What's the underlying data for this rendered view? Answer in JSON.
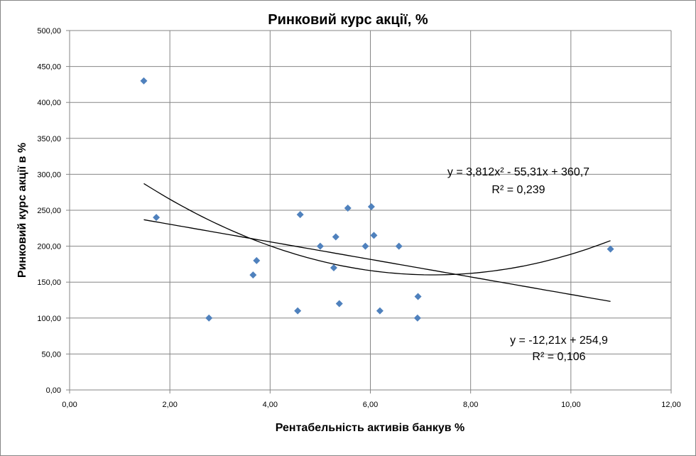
{
  "chart_data": {
    "type": "scatter",
    "title": "Ринковий курс акції, %",
    "xlabel": "Рентабельність  активів банкув %",
    "ylabel": "Ринковий курс акції в %",
    "xlim": [
      0,
      12
    ],
    "ylim": [
      0,
      500
    ],
    "grid": true,
    "legend": "none",
    "x_ticks": [
      "0,00",
      "2,00",
      "4,00",
      "6,00",
      "8,00",
      "10,00",
      "12,00"
    ],
    "y_ticks": [
      "0,00",
      "50,00",
      "100,00",
      "150,00",
      "200,00",
      "250,00",
      "300,00",
      "350,00",
      "400,00",
      "450,00",
      "500,00"
    ],
    "marker_color": "#4F81BD",
    "points": [
      {
        "x": 1.48,
        "y": 430
      },
      {
        "x": 1.73,
        "y": 240
      },
      {
        "x": 2.78,
        "y": 100
      },
      {
        "x": 3.66,
        "y": 160
      },
      {
        "x": 3.73,
        "y": 180
      },
      {
        "x": 4.55,
        "y": 110
      },
      {
        "x": 4.6,
        "y": 244
      },
      {
        "x": 5.0,
        "y": 200
      },
      {
        "x": 5.27,
        "y": 170
      },
      {
        "x": 5.31,
        "y": 213
      },
      {
        "x": 5.38,
        "y": 120
      },
      {
        "x": 5.55,
        "y": 253
      },
      {
        "x": 5.9,
        "y": 200
      },
      {
        "x": 6.02,
        "y": 255
      },
      {
        "x": 6.07,
        "y": 215
      },
      {
        "x": 6.19,
        "y": 110
      },
      {
        "x": 6.57,
        "y": 200
      },
      {
        "x": 6.95,
        "y": 130
      },
      {
        "x": 6.94,
        "y": 100
      },
      {
        "x": 10.79,
        "y": 196
      }
    ],
    "trendlines": [
      {
        "kind": "polynomial",
        "coef": [
          3.812,
          -55.31,
          360.7
        ],
        "equation": "y = 3,812x² - 55,31x + 360,7",
        "r2": "R² = 0,239",
        "x_range": [
          1.48,
          10.79
        ]
      },
      {
        "kind": "linear",
        "coef": [
          -12.21,
          254.9
        ],
        "equation": "y = -12,21x + 254,9",
        "r2": "R² = 0,106",
        "x_range": [
          1.48,
          10.79
        ]
      }
    ]
  }
}
